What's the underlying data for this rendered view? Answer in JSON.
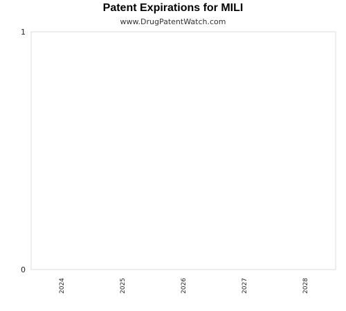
{
  "chart_data": {
    "type": "bar",
    "title": "Patent Expirations for MILI",
    "subtitle": "www.DrugPatentWatch.com",
    "categories": [
      "2024",
      "2025",
      "2026",
      "2027",
      "2028"
    ],
    "values": [
      0,
      0,
      0,
      0,
      0
    ],
    "ylim": [
      0,
      1
    ],
    "yticks": [
      "0",
      "1"
    ],
    "xlabel": "",
    "ylabel": "",
    "grid": false,
    "legend": "none",
    "colors": {
      "plot_border": "#dddddd",
      "text": "#000000"
    }
  }
}
